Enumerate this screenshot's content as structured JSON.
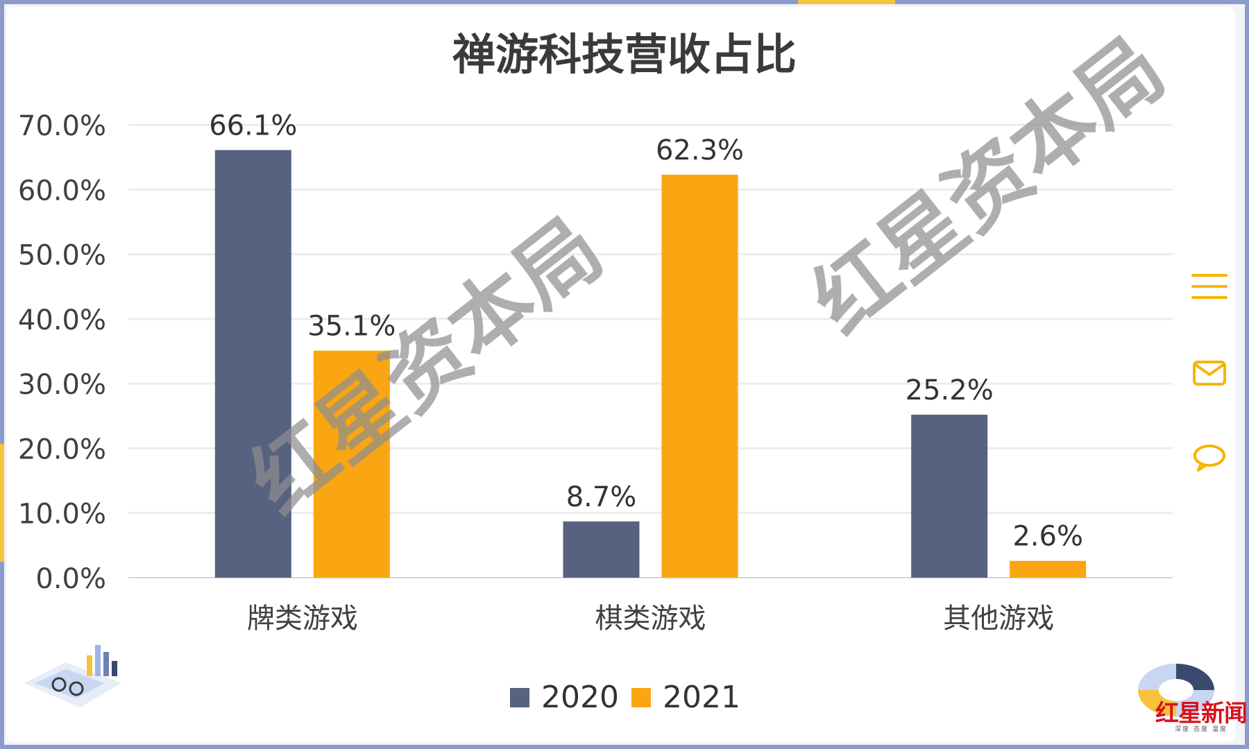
{
  "chart_data": {
    "type": "bar",
    "title": "禅游科技营收占比",
    "categories": [
      "牌类游戏",
      "棋类游戏",
      "其他游戏"
    ],
    "series": [
      {
        "name": "2020",
        "values": [
          66.1,
          8.7,
          25.2
        ],
        "labels": [
          "66.1%",
          "8.7%",
          "25.2%"
        ],
        "color": "#56627f"
      },
      {
        "name": "2021",
        "values": [
          35.1,
          62.3,
          2.6
        ],
        "labels": [
          "35.1%",
          "62.3%",
          "2.6%"
        ],
        "color": "#faa612"
      }
    ],
    "ylim": [
      0,
      70
    ],
    "yticks": [
      "0.0%",
      "10.0%",
      "20.0%",
      "30.0%",
      "40.0%",
      "50.0%",
      "60.0%",
      "70.0%"
    ],
    "grid": true,
    "legend_position": "bottom-center"
  },
  "watermark": {
    "text": "红星资本局"
  },
  "brand": {
    "logo_text": "红星新闻",
    "tagline": "深度 态度 温度"
  },
  "sidebar": {
    "icons": [
      "menu-icon",
      "mail-icon",
      "comment-icon"
    ],
    "accent": "#f5b500"
  }
}
